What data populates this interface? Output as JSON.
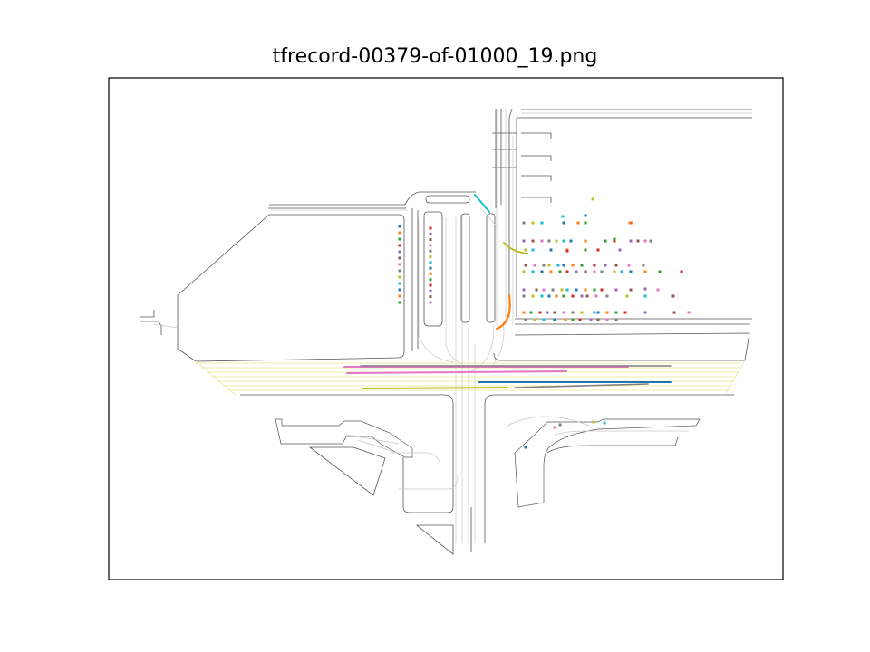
{
  "figure": {
    "title": "tfrecord-00379-of-01000_19.png"
  },
  "colors": {
    "road_edge": "#555555",
    "lane": "#c8c8c8",
    "lane_yellow": "#e6e68c",
    "tab_blue": "#1f77b4",
    "tab_orange": "#ff7f0e",
    "tab_green": "#2ca02c",
    "tab_red": "#d62728",
    "tab_purple": "#9467bd",
    "tab_brown": "#8c564b",
    "tab_pink": "#e377c2",
    "tab_gray": "#7f7f7f",
    "tab_olive": "#bcbd22",
    "tab_cyan": "#17becf"
  }
}
